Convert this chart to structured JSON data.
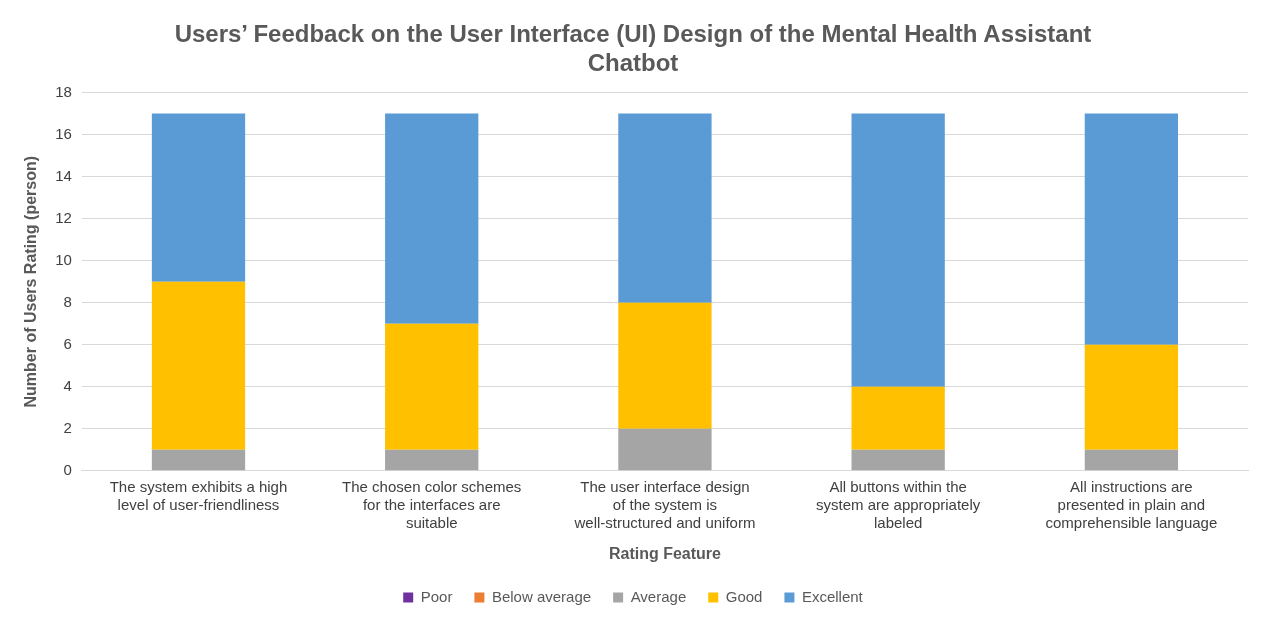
{
  "chart_data": {
    "type": "bar",
    "title": "Users’ Feedback on the User Interface (UI) Design of the Mental Health Assistant Chatbot",
    "xlabel": "Rating Feature",
    "ylabel": "Number of Users Rating (person)",
    "categories": [
      "The system exhibits a high level of user-friendliness",
      "The chosen color schemes for the interfaces are suitable",
      "The user interface design of the system is well-structured and uniform",
      "All buttons within the system are appropriately labeled",
      "All instructions are presented in plain and comprehensible language"
    ],
    "series": [
      {
        "name": "Poor",
        "color": "#7030a0",
        "values": [
          0,
          0,
          0,
          0,
          0
        ]
      },
      {
        "name": "Below average",
        "color": "#ed7d31",
        "values": [
          0,
          0,
          0,
          0,
          0
        ]
      },
      {
        "name": "Average",
        "color": "#a5a5a5",
        "values": [
          1,
          1,
          2,
          1,
          1
        ]
      },
      {
        "name": "Good",
        "color": "#ffc000",
        "values": [
          8,
          6,
          6,
          3,
          5
        ]
      },
      {
        "name": "Excellent",
        "color": "#5b9bd5",
        "values": [
          8,
          10,
          9,
          13,
          11
        ]
      }
    ],
    "stacked": true,
    "ylim": [
      0,
      18
    ],
    "yticks": [
      0,
      2,
      4,
      6,
      8,
      10,
      12,
      14,
      16,
      18
    ],
    "grid": "y",
    "legend": "bottom"
  }
}
